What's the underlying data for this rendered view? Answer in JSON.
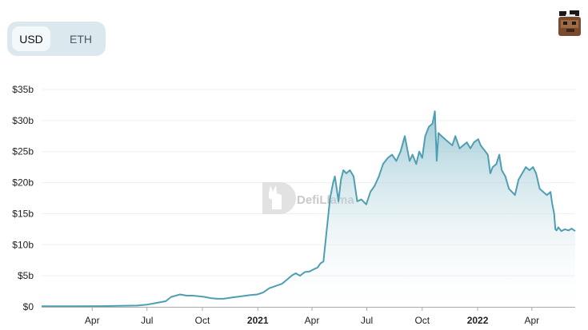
{
  "currency_toggle": {
    "options": [
      {
        "label": "USD",
        "active": true
      },
      {
        "label": "ETH",
        "active": false
      }
    ]
  },
  "watermark": {
    "text": "DefiLlama"
  },
  "chart_data": {
    "type": "area",
    "title": "",
    "xlabel": "",
    "ylabel": "",
    "ylim": [
      0,
      35
    ],
    "xlim": [
      "2020-01-08",
      "2022-06-12"
    ],
    "y_unit": "b",
    "y_ticks": [
      {
        "value": 0,
        "label": "$0"
      },
      {
        "value": 5,
        "label": "$5b"
      },
      {
        "value": 10,
        "label": "$10b"
      },
      {
        "value": 15,
        "label": "$15b"
      },
      {
        "value": 20,
        "label": "$20b"
      },
      {
        "value": 25,
        "label": "$25b"
      },
      {
        "value": 30,
        "label": "$30b"
      },
      {
        "value": 35,
        "label": "$35b"
      }
    ],
    "x_ticks": [
      {
        "date": "2020-04-01",
        "label": "Apr",
        "bold": false
      },
      {
        "date": "2020-07-01",
        "label": "Jul",
        "bold": false
      },
      {
        "date": "2020-10-01",
        "label": "Oct",
        "bold": false
      },
      {
        "date": "2021-01-01",
        "label": "2021",
        "bold": true
      },
      {
        "date": "2021-04-01",
        "label": "Apr",
        "bold": false
      },
      {
        "date": "2021-07-01",
        "label": "Jul",
        "bold": false
      },
      {
        "date": "2021-10-01",
        "label": "Oct",
        "bold": false
      },
      {
        "date": "2022-01-01",
        "label": "2022",
        "bold": true
      },
      {
        "date": "2022-04-01",
        "label": "Apr",
        "bold": false
      }
    ],
    "grid": true,
    "line_color": "#4f9fb2",
    "fill_top_color": "#7fb8c8",
    "fill_bottom_color": "#ffffff",
    "series": [
      {
        "x": [
          "2020-01-08",
          "2020-03-01",
          "2020-04-15",
          "2020-05-15",
          "2020-06-15",
          "2020-07-01",
          "2020-07-20",
          "2020-08-01",
          "2020-08-10",
          "2020-08-25",
          "2020-09-05",
          "2020-09-15",
          "2020-09-25",
          "2020-10-05",
          "2020-10-15",
          "2020-10-25",
          "2020-11-05",
          "2020-11-20",
          "2020-12-05",
          "2020-12-20",
          "2020-12-31",
          "2021-01-10",
          "2021-01-20",
          "2021-02-01",
          "2021-02-10",
          "2021-02-20",
          "2021-02-26",
          "2021-03-01",
          "2021-03-05",
          "2021-03-12",
          "2021-03-20",
          "2021-03-28",
          "2021-04-05",
          "2021-04-10",
          "2021-04-15",
          "2021-04-20",
          "2021-04-25",
          "2021-05-01",
          "2021-05-06",
          "2021-05-09",
          "2021-05-12",
          "2021-05-15",
          "2021-05-19",
          "2021-05-23",
          "2021-05-28",
          "2021-06-03",
          "2021-06-09",
          "2021-06-15",
          "2021-06-22",
          "2021-06-30",
          "2021-07-07",
          "2021-07-14",
          "2021-07-21",
          "2021-07-28",
          "2021-08-05",
          "2021-08-12",
          "2021-08-19",
          "2021-08-26",
          "2021-09-02",
          "2021-09-07",
          "2021-09-10",
          "2021-09-15",
          "2021-09-21",
          "2021-09-26",
          "2021-10-01",
          "2021-10-06",
          "2021-10-12",
          "2021-10-18",
          "2021-10-22",
          "2021-10-25",
          "2021-10-28",
          "2021-11-02",
          "2021-11-08",
          "2021-11-14",
          "2021-11-20",
          "2021-11-25",
          "2021-12-02",
          "2021-12-08",
          "2021-12-14",
          "2021-12-20",
          "2021-12-26",
          "2022-01-02",
          "2022-01-06",
          "2022-01-10",
          "2022-01-14",
          "2022-01-18",
          "2022-01-22",
          "2022-01-26",
          "2022-02-01",
          "2022-02-06",
          "2022-02-10",
          "2022-02-16",
          "2022-02-22",
          "2022-02-27",
          "2022-03-04",
          "2022-03-10",
          "2022-03-16",
          "2022-03-22",
          "2022-03-28",
          "2022-04-03",
          "2022-04-08",
          "2022-04-14",
          "2022-04-20",
          "2022-04-26",
          "2022-05-02",
          "2022-05-05",
          "2022-05-08",
          "2022-05-10",
          "2022-05-12",
          "2022-05-15",
          "2022-05-20",
          "2022-05-26",
          "2022-06-01",
          "2022-06-06",
          "2022-06-12"
        ],
        "y": [
          0.1,
          0.1,
          0.12,
          0.15,
          0.2,
          0.35,
          0.7,
          0.9,
          1.6,
          2.0,
          1.8,
          1.8,
          1.7,
          1.6,
          1.4,
          1.3,
          1.3,
          1.5,
          1.7,
          1.9,
          2.0,
          2.3,
          3.0,
          3.4,
          3.7,
          4.5,
          5.0,
          5.2,
          5.4,
          5.0,
          5.6,
          5.7,
          6.1,
          6.3,
          7.0,
          7.3,
          12.0,
          17.5,
          20.0,
          21.0,
          19.0,
          17.0,
          20.5,
          22.0,
          21.5,
          22.0,
          21.0,
          17.0,
          17.3,
          16.5,
          18.5,
          19.5,
          21.0,
          23.0,
          24.0,
          24.5,
          23.5,
          25.0,
          27.5,
          25.0,
          23.5,
          24.5,
          23.0,
          25.0,
          24.0,
          27.5,
          29.0,
          29.5,
          31.5,
          23.5,
          28.0,
          27.5,
          27.0,
          26.5,
          26.0,
          27.5,
          25.5,
          26.0,
          26.5,
          25.5,
          26.5,
          27.0,
          26.0,
          25.5,
          25.0,
          24.5,
          21.5,
          22.5,
          23.0,
          24.5,
          22.0,
          21.0,
          19.0,
          18.5,
          18.0,
          20.5,
          21.5,
          22.5,
          22.0,
          22.5,
          21.5,
          19.0,
          18.5,
          18.0,
          18.5,
          16.5,
          15.0,
          12.5,
          12.3,
          12.8,
          12.2,
          12.5,
          12.3,
          12.6,
          12.2
        ]
      }
    ]
  }
}
